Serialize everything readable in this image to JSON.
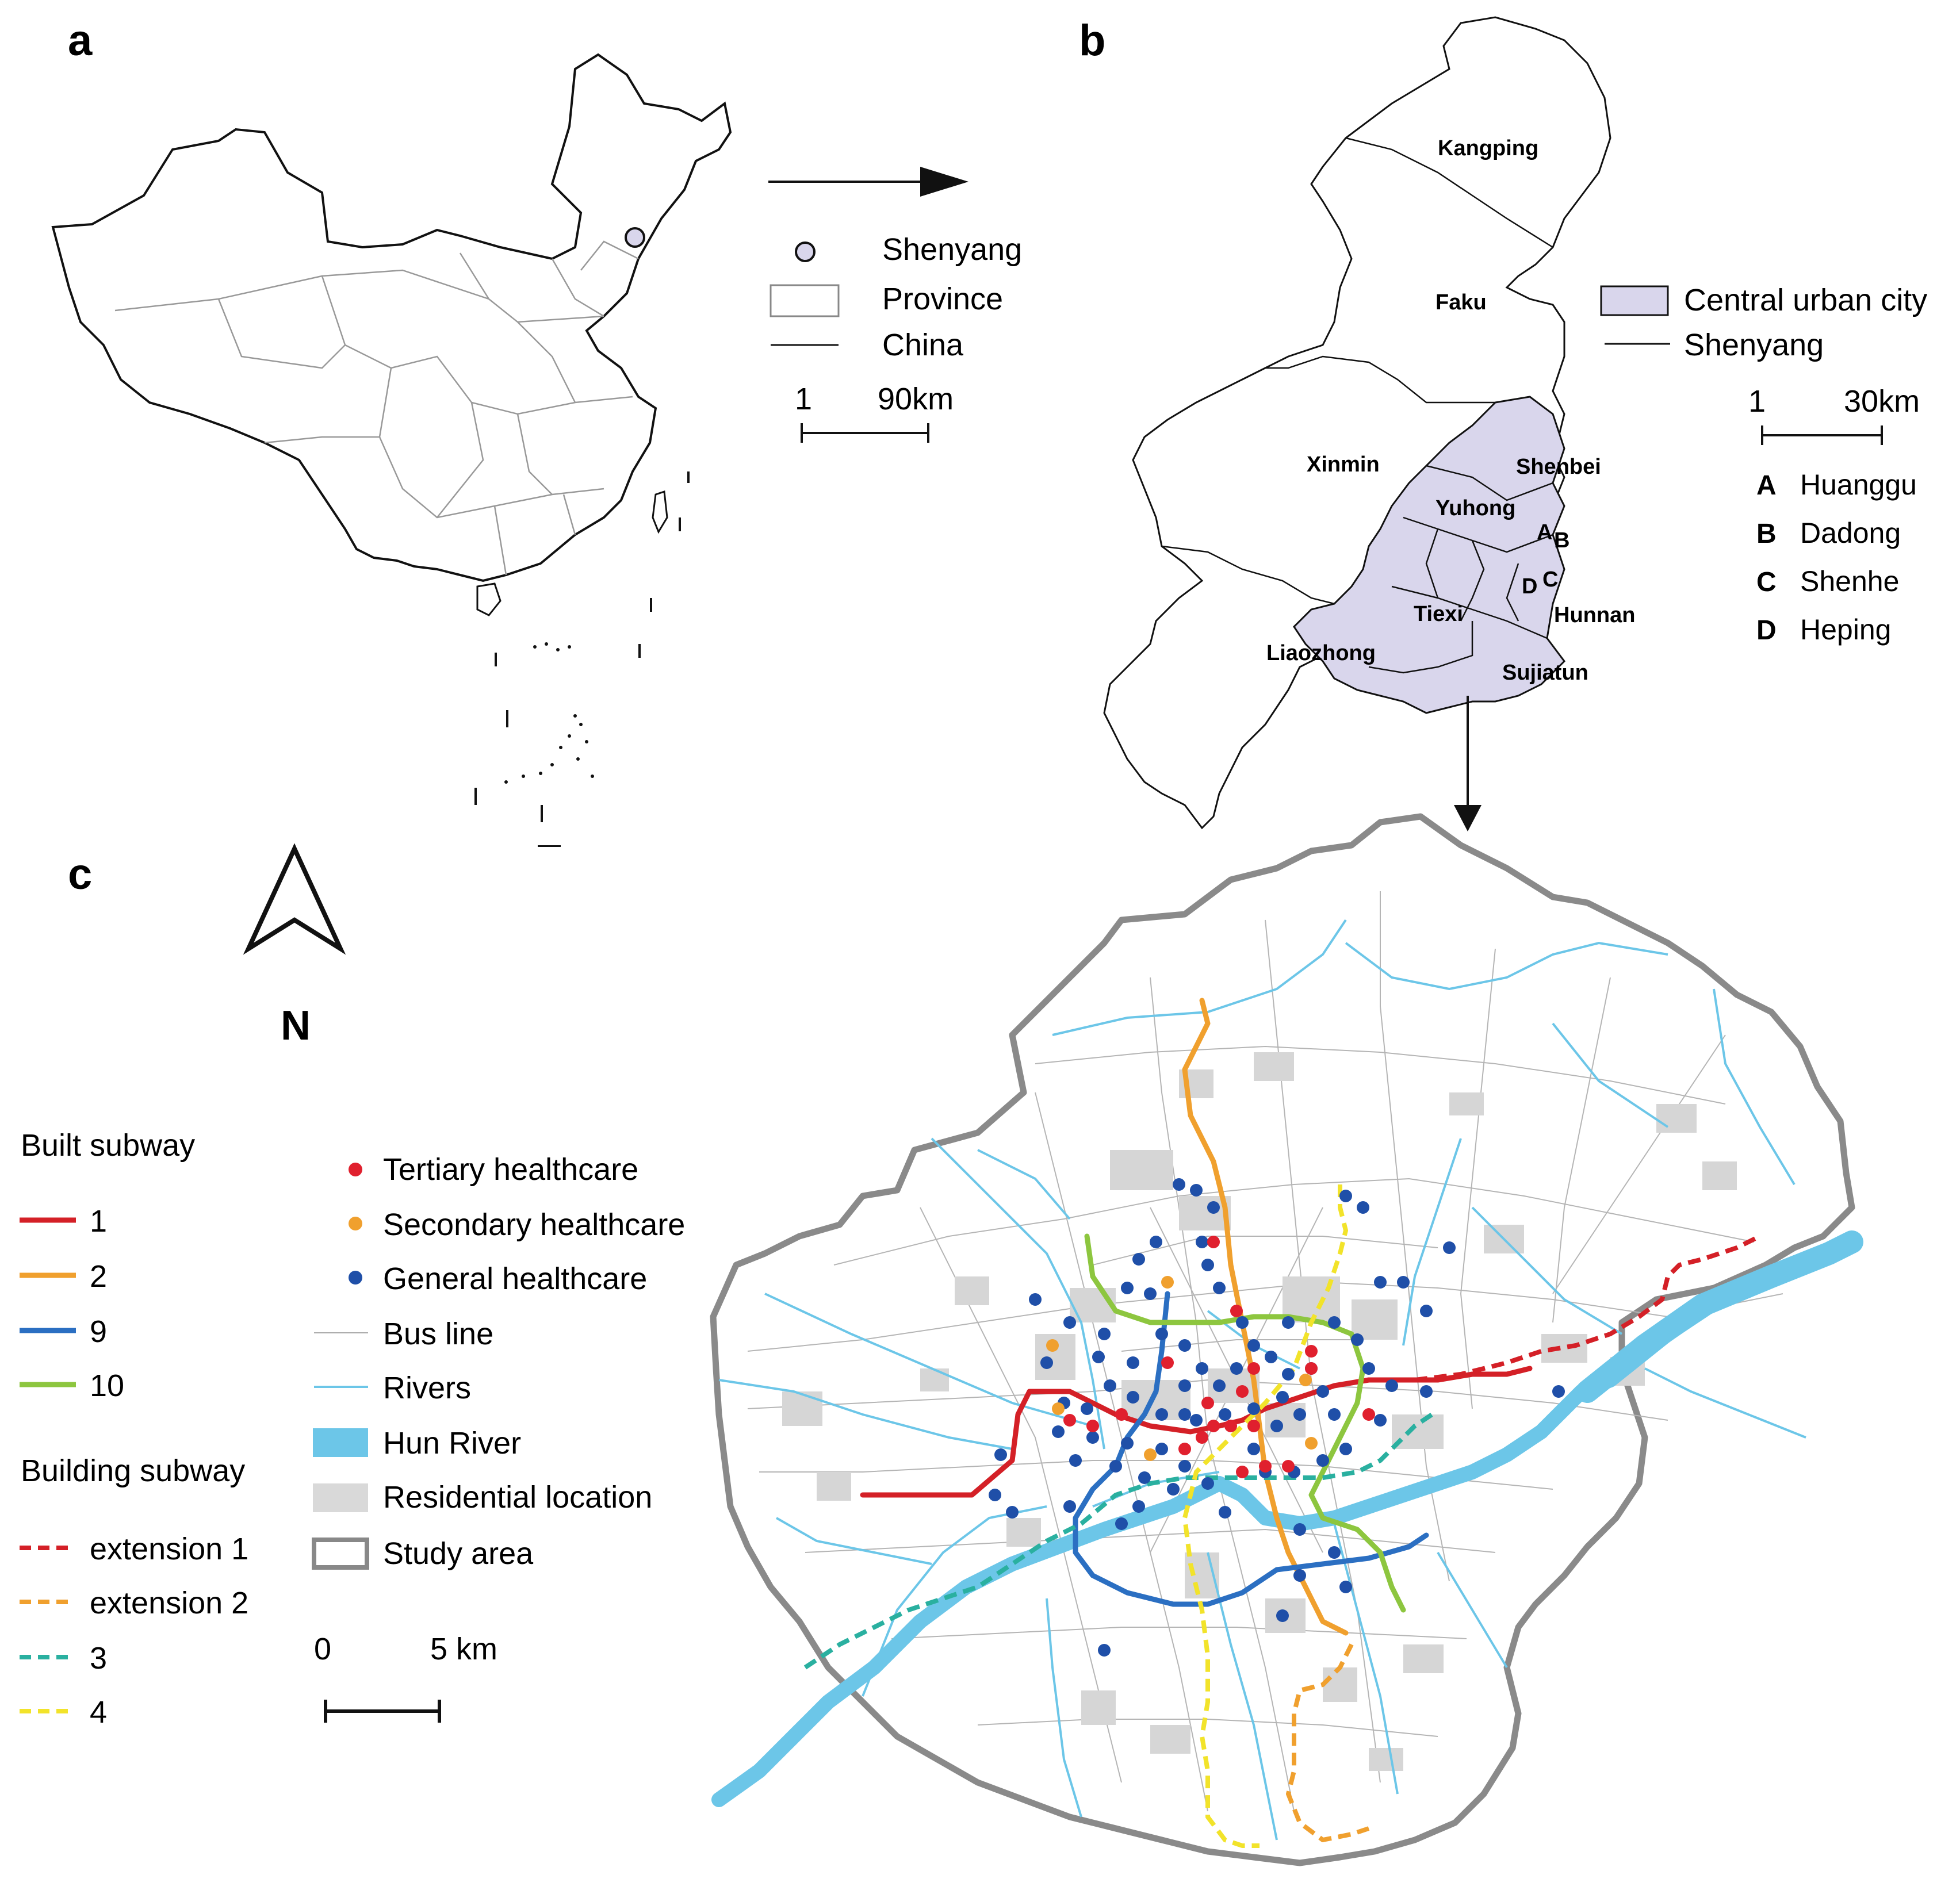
{
  "panels": [
    "a",
    "b",
    "c"
  ],
  "panel_a": {
    "legend": {
      "city": "Shenyang",
      "province": "Province",
      "country": "China"
    },
    "scale": {
      "left": "1",
      "right": "90km"
    }
  },
  "panel_b": {
    "districts": [
      "Kangping",
      "Faku",
      "Xinmin",
      "Shenbei",
      "Yuhong",
      "Tiexi",
      "Hunnan",
      "Liaozhong",
      "Sujiatun"
    ],
    "marks": [
      "A",
      "B",
      "C",
      "D"
    ],
    "legend": {
      "central": "Central urban city",
      "boundary": "Shenyang"
    },
    "scale": {
      "left": "1",
      "right": "30km"
    },
    "key": [
      {
        "letter": "A",
        "name": "Huanggu"
      },
      {
        "letter": "B",
        "name": "Dadong"
      },
      {
        "letter": "C",
        "name": "Shenhe"
      },
      {
        "letter": "D",
        "name": "Heping"
      }
    ]
  },
  "panel_c": {
    "north": "N",
    "built_title": "Built subway",
    "built": [
      {
        "label": "1",
        "color": "#d42027"
      },
      {
        "label": "2",
        "color": "#f0a02e"
      },
      {
        "label": "9",
        "color": "#2b6fc2"
      },
      {
        "label": "10",
        "color": "#8dc63f"
      }
    ],
    "building_title": "Building subway",
    "building": [
      {
        "label": "extension 1",
        "color": "#d42027"
      },
      {
        "label": "extension 2",
        "color": "#f0a02e"
      },
      {
        "label": "3",
        "color": "#2ab0a0"
      },
      {
        "label": "4",
        "color": "#f2e32a"
      }
    ],
    "legend2": [
      {
        "label": "Tertiary healthcare",
        "color": "#e0202e"
      },
      {
        "label": "Secondary healthcare",
        "color": "#f0a02e"
      },
      {
        "label": "General healthcare",
        "color": "#1f4fa8"
      },
      {
        "label": "Bus line",
        "color": "#aaaaaa"
      },
      {
        "label": "Rivers",
        "color": "#6cc6e8"
      },
      {
        "label": "Hun River",
        "color": "#6cc6e8"
      },
      {
        "label": "Residential location",
        "color": "#d9d9d9"
      },
      {
        "label": "Study area",
        "color": "#888888"
      }
    ],
    "scale": {
      "left": "0",
      "right": "5 km"
    }
  }
}
